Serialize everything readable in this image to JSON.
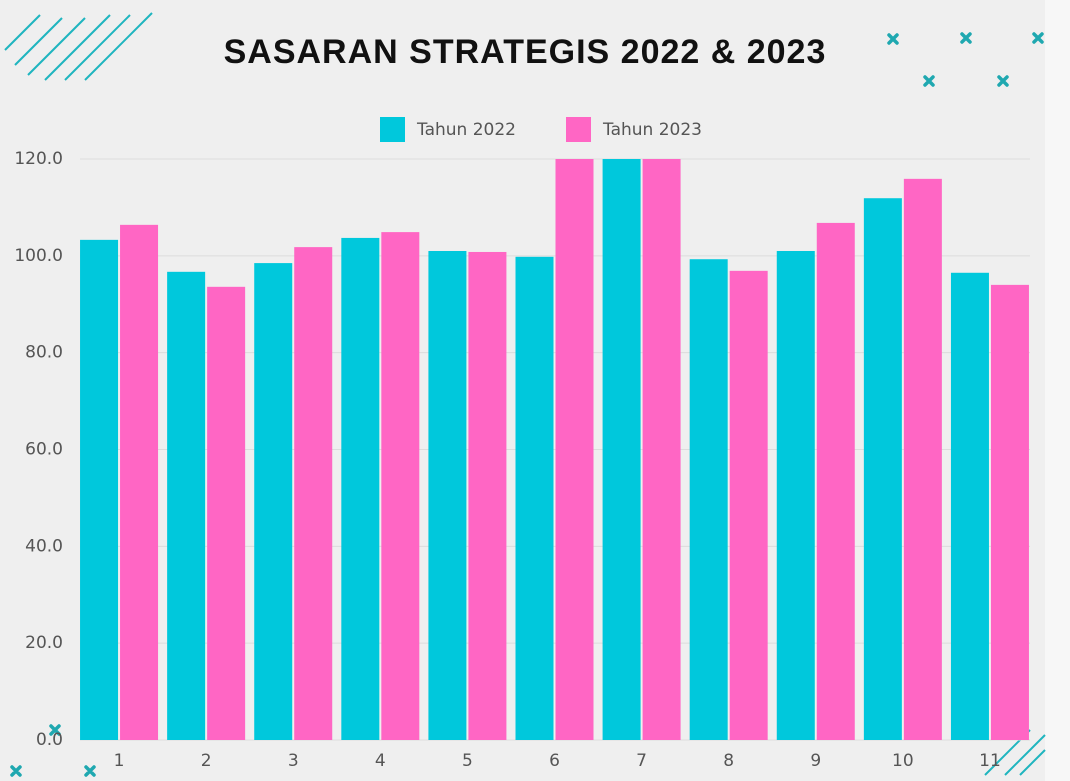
{
  "chart_data": {
    "type": "bar",
    "title": "SASARAN STRATEGIS  2022 & 2023",
    "categories": [
      "1",
      "2",
      "3",
      "4",
      "5",
      "6",
      "7",
      "8",
      "9",
      "10",
      "11"
    ],
    "series": [
      {
        "name": "Tahun 2022",
        "color": "#00c8dc",
        "values": [
          103.3,
          96.7,
          98.5,
          103.7,
          101.0,
          99.8,
          120,
          99.3,
          101.0,
          111.9,
          96.5
        ]
      },
      {
        "name": "Tahun 2023",
        "color": "#ff66c4",
        "values": [
          106.4,
          93.6,
          101.8,
          104.9,
          100.8,
          120,
          120,
          96.9,
          106.8,
          115.9,
          94.0
        ]
      }
    ],
    "ylim": [
      0,
      120
    ],
    "yticks": [
      {
        "value": 0,
        "label": "0.0"
      },
      {
        "value": 20,
        "label": "20.0"
      },
      {
        "value": 40,
        "label": "40.0"
      },
      {
        "value": 60,
        "label": "60.0"
      },
      {
        "value": 80,
        "label": "80.0"
      },
      {
        "value": 100,
        "label": "100.0"
      },
      {
        "value": 120,
        "label": "120.0"
      }
    ],
    "grid": true,
    "legend": "top"
  }
}
